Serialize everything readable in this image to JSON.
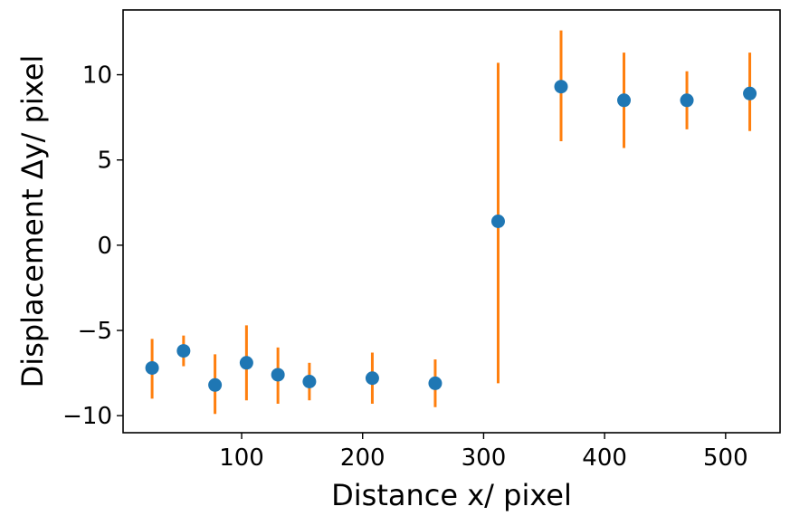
{
  "chart_data": {
    "type": "scatter",
    "title": "",
    "xlabel": "Distance x/ pixel",
    "ylabel": "Displacement Δy/ pixel",
    "xlim": [
      2,
      545
    ],
    "ylim": [
      -11,
      13.8
    ],
    "xticks": [
      100,
      200,
      300,
      400,
      500
    ],
    "yticks": [
      -10,
      -5,
      0,
      5,
      10
    ],
    "ytick_labels": [
      "−10",
      "−5",
      "0",
      "5",
      "10"
    ],
    "grid": false,
    "legend": "none",
    "series": [
      {
        "x": [
          26,
          52,
          78,
          104,
          130,
          156,
          208,
          260,
          312,
          364,
          416,
          468,
          520
        ],
        "y": [
          -7.2,
          -6.2,
          -8.2,
          -6.9,
          -7.6,
          -8.0,
          -7.8,
          -8.1,
          1.4,
          9.3,
          8.5,
          8.5,
          8.9
        ],
        "error_low": [
          -9.0,
          -7.1,
          -9.9,
          -9.1,
          -9.3,
          -9.1,
          -9.3,
          -9.5,
          -8.1,
          6.1,
          5.7,
          6.8,
          6.7
        ],
        "error_high": [
          -5.5,
          -5.3,
          -6.4,
          -4.7,
          -6.0,
          -6.9,
          -6.3,
          -6.7,
          10.7,
          12.6,
          11.3,
          10.2,
          11.3
        ],
        "marker_color": "#1f77b4",
        "error_color": "#ff7f0e"
      }
    ]
  }
}
